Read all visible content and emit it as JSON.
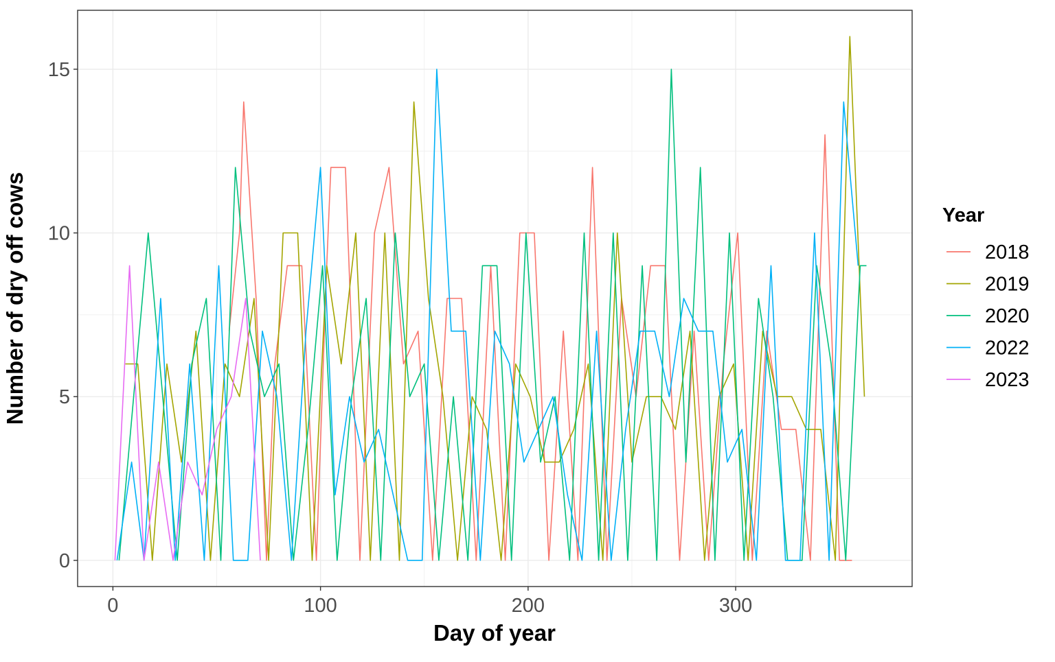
{
  "chart_data": {
    "type": "line",
    "xlabel": "Day of year",
    "ylabel": "Number of dry off cows",
    "xlim": [
      -17,
      385
    ],
    "ylim": [
      -0.8,
      16.8
    ],
    "x_ticks": [
      0,
      100,
      200,
      300
    ],
    "x_tick_labels": [
      "0",
      "100",
      "200",
      "300"
    ],
    "y_ticks": [
      0,
      5,
      10,
      15
    ],
    "y_tick_labels": [
      "0",
      "5",
      "10",
      "15"
    ],
    "grid": true,
    "legend": {
      "title": "Year",
      "placement": "right"
    },
    "series": [
      {
        "name": "2018",
        "color": "#F8766D",
        "x": [
          56,
          61,
          63,
          69,
          74,
          78,
          84,
          91,
          98,
          103,
          105,
          112,
          119,
          126,
          133,
          140,
          147,
          154,
          161,
          168,
          175,
          182,
          189,
          196,
          203,
          210,
          217,
          224,
          231,
          238,
          245,
          252,
          259,
          266,
          273,
          280,
          287,
          294,
          301,
          308,
          315,
          322,
          329,
          336,
          343,
          350,
          356
        ],
        "y": [
          7,
          10,
          14,
          8,
          0,
          6,
          9,
          9,
          0,
          9,
          12,
          12,
          0,
          10,
          12,
          6,
          7,
          0,
          8,
          8,
          0,
          9,
          0,
          10,
          10,
          0,
          7,
          0,
          12,
          0,
          8,
          5,
          9,
          9,
          0,
          7,
          0,
          6,
          10,
          0,
          7,
          4,
          4,
          0,
          13,
          0,
          0
        ]
      },
      {
        "name": "2019",
        "color": "#A3A500",
        "x": [
          6,
          12,
          19,
          26,
          33,
          40,
          47,
          54,
          61,
          68,
          75,
          82,
          89,
          96,
          103,
          110,
          117,
          124,
          131,
          138,
          145,
          152,
          159,
          166,
          173,
          180,
          187,
          194,
          201,
          208,
          215,
          222,
          229,
          236,
          243,
          250,
          257,
          264,
          271,
          278,
          285,
          292,
          299,
          306,
          313,
          320,
          327,
          334,
          341,
          348,
          355,
          362
        ],
        "y": [
          6,
          6,
          0,
          6,
          3,
          7,
          0,
          6,
          5,
          8,
          0,
          10,
          10,
          0,
          9,
          6,
          10,
          0,
          10,
          0,
          14,
          8,
          5,
          0,
          5,
          4,
          0,
          6,
          5,
          3,
          3,
          4,
          6,
          0,
          10,
          3,
          5,
          5,
          4,
          7,
          0,
          5,
          6,
          0,
          7,
          5,
          5,
          4,
          4,
          0,
          16,
          5
        ]
      },
      {
        "name": "2020",
        "color": "#00BF7D",
        "x": [
          3,
          10,
          17,
          24,
          31,
          38,
          45,
          52,
          59,
          66,
          73,
          80,
          87,
          94,
          101,
          108,
          115,
          122,
          129,
          136,
          143,
          150,
          157,
          164,
          171,
          178,
          185,
          192,
          199,
          206,
          213,
          220,
          227,
          234,
          241,
          248,
          255,
          262,
          269,
          276,
          283,
          290,
          297,
          304,
          311,
          318,
          325,
          332,
          339,
          346,
          353,
          360,
          363
        ],
        "y": [
          0,
          5,
          10,
          5,
          0,
          6,
          8,
          0,
          12,
          7,
          5,
          6,
          0,
          4,
          9,
          0,
          5,
          8,
          0,
          10,
          5,
          6,
          0,
          5,
          0,
          9,
          9,
          0,
          10,
          3,
          5,
          0,
          10,
          0,
          10,
          0,
          9,
          0,
          15,
          3,
          12,
          0,
          10,
          0,
          8,
          5,
          0,
          0,
          9,
          6,
          0,
          9,
          9
        ]
      },
      {
        "name": "2022",
        "color": "#00B0F6",
        "x": [
          2,
          9,
          15,
          23,
          30,
          37,
          44,
          51,
          58,
          65,
          72,
          79,
          86,
          93,
          100,
          107,
          114,
          121,
          128,
          135,
          142,
          149,
          156,
          163,
          170,
          177,
          184,
          191,
          198,
          205,
          212,
          219,
          226,
          233,
          240,
          247,
          254,
          261,
          268,
          275,
          282,
          289,
          296,
          303,
          310,
          317,
          324,
          331,
          338,
          345,
          352,
          359
        ],
        "y": [
          0,
          3,
          0,
          8,
          0,
          6,
          0,
          9,
          0,
          0,
          7,
          5,
          0,
          7,
          12,
          2,
          5,
          3,
          4,
          2,
          0,
          0,
          15,
          7,
          7,
          0,
          7,
          6,
          3,
          4,
          5,
          2,
          0,
          7,
          0,
          4,
          7,
          7,
          5,
          8,
          7,
          7,
          3,
          4,
          0,
          9,
          0,
          0,
          10,
          0,
          14,
          9
        ]
      },
      {
        "name": "2023",
        "color": "#E76BF3",
        "x": [
          1,
          8,
          15,
          22,
          29,
          36,
          43,
          50,
          57,
          64,
          71
        ],
        "y": [
          0,
          9,
          0,
          3,
          0,
          3,
          2,
          4,
          5,
          8,
          0
        ]
      }
    ]
  }
}
